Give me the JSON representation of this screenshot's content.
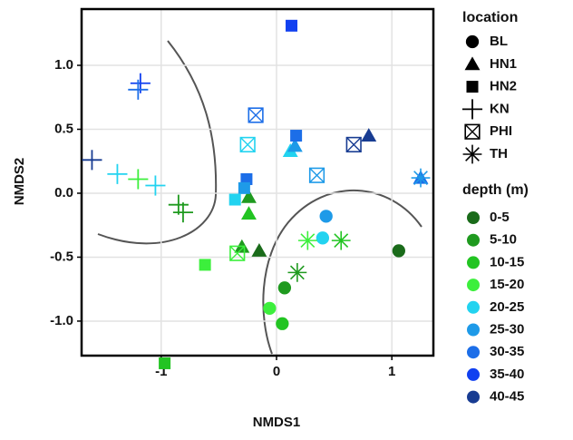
{
  "chart_data": {
    "type": "scatter",
    "x_label": "NMDS1",
    "y_label": "NMDS2",
    "xlim": [
      -1.69,
      1.36
    ],
    "ylim": [
      -1.27,
      1.44
    ],
    "xticks": [
      -1,
      0,
      1
    ],
    "yticks": [
      {
        "value": -1,
        "label": "-1.0"
      },
      -0.5,
      {
        "value": 0,
        "label": "0.0"
      },
      0.5,
      {
        "value": 1,
        "label": "1.0"
      }
    ],
    "grid": true,
    "location_legend": {
      "title": "location"
    },
    "depth_legend": {
      "title": "depth (m)",
      "labels": [
        "0-5",
        "5-10",
        "10-15",
        "15-20",
        "20-25",
        "25-30",
        "30-35",
        "35-40",
        "40-45"
      ],
      "colors": [
        "#1a6b1a",
        "#1f9a1f",
        "#22c422",
        "#3cef3c",
        "#22d3f0",
        "#1e9ae8",
        "#1c6ee8",
        "#1140f0",
        "#183c92"
      ]
    },
    "series": [
      {
        "name": "BL",
        "shape": "circle",
        "x": [
          1.06,
          0.07,
          0.05,
          -0.06,
          0.4,
          0.43
        ],
        "y": [
          -0.45,
          -0.74,
          -1.02,
          -0.9,
          -0.35,
          -0.18
        ],
        "depth": [
          "0-5",
          "5-10",
          "10-15",
          "15-20",
          "20-25",
          "25-30"
        ]
      },
      {
        "name": "HN1",
        "shape": "triangle",
        "x": [
          0.8,
          0.12,
          0.16,
          1.25,
          -0.24,
          -0.24,
          -0.3,
          -0.15
        ],
        "y": [
          0.45,
          0.33,
          0.37,
          0.12,
          -0.03,
          -0.16,
          -0.42,
          -0.45
        ],
        "depth": [
          "40-45",
          "20-25",
          "25-30",
          "30-35",
          "5-10",
          "10-15",
          "5-10",
          "0-5"
        ]
      },
      {
        "name": "HN2",
        "shape": "square",
        "x": [
          0.13,
          0.17,
          -0.26,
          -0.28,
          -0.36,
          -0.62,
          -0.97
        ],
        "y": [
          1.31,
          0.45,
          0.11,
          0.04,
          -0.05,
          -0.56,
          -1.33
        ],
        "depth": [
          "35-40",
          "30-35",
          "30-35",
          "25-30",
          "20-25",
          "15-20",
          "10-15"
        ]
      },
      {
        "name": "KN",
        "shape": "plus",
        "x": [
          -1.6,
          -1.18,
          -1.2,
          -1.38,
          -1.05,
          -1.2,
          -0.85,
          -0.81
        ],
        "y": [
          0.26,
          0.86,
          0.81,
          0.15,
          0.06,
          0.11,
          -0.09,
          -0.15
        ],
        "depth": [
          "40-45",
          "35-40",
          "30-35",
          "20-25",
          "20-25",
          "15-20",
          "5-10",
          "5-10"
        ]
      },
      {
        "name": "PHI",
        "shape": "boxx",
        "x": [
          -0.18,
          -0.25,
          0.35,
          0.67,
          -0.34
        ],
        "y": [
          0.61,
          0.38,
          0.14,
          0.38,
          -0.47
        ],
        "depth": [
          "30-35",
          "20-25",
          "25-30",
          "40-45",
          "15-20"
        ]
      },
      {
        "name": "TH",
        "shape": "asterisk",
        "x": [
          0.27,
          0.56,
          0.18,
          1.25
        ],
        "y": [
          -0.37,
          -0.37,
          -0.62,
          0.12
        ],
        "depth": [
          "15-20",
          "10-15",
          "5-10",
          "25-30"
        ]
      }
    ]
  }
}
